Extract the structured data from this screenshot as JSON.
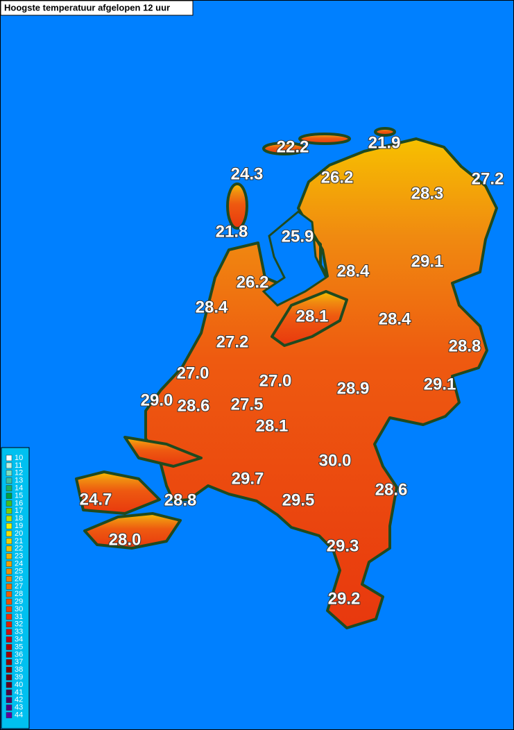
{
  "title": "Hoogste temperatuur afgelopen 12 uur",
  "stations": [
    {
      "label": "22.2"
    },
    {
      "label": "21.9"
    },
    {
      "label": "24.3"
    },
    {
      "label": "26.2"
    },
    {
      "label": "28.3"
    },
    {
      "label": "27.2"
    },
    {
      "label": "21.8"
    },
    {
      "label": "25.9"
    },
    {
      "label": "29.1"
    },
    {
      "label": "28.4"
    },
    {
      "label": "26.2"
    },
    {
      "label": "28.4"
    },
    {
      "label": "28.1"
    },
    {
      "label": "28.4"
    },
    {
      "label": "28.8"
    },
    {
      "label": "27.2"
    },
    {
      "label": "27.0"
    },
    {
      "label": "27.0"
    },
    {
      "label": "28.9"
    },
    {
      "label": "29.1"
    },
    {
      "label": "29.0"
    },
    {
      "label": "28.6"
    },
    {
      "label": "27.5"
    },
    {
      "label": "28.1"
    },
    {
      "label": "30.0"
    },
    {
      "label": "29.7"
    },
    {
      "label": "28.6"
    },
    {
      "label": "24.7"
    },
    {
      "label": "28.8"
    },
    {
      "label": "29.5"
    },
    {
      "label": "28.0"
    },
    {
      "label": "29.3"
    },
    {
      "label": "29.2"
    }
  ],
  "legend": {
    "entries": [
      {
        "label": "10",
        "color": "#ffffff"
      },
      {
        "label": "11",
        "color": "#c0f0e0"
      },
      {
        "label": "12",
        "color": "#80e0c0"
      },
      {
        "label": "13",
        "color": "#40c0a0"
      },
      {
        "label": "14",
        "color": "#20b060"
      },
      {
        "label": "15",
        "color": "#00a040"
      },
      {
        "label": "16",
        "color": "#40c020"
      },
      {
        "label": "17",
        "color": "#80d000"
      },
      {
        "label": "18",
        "color": "#c0e000"
      },
      {
        "label": "19",
        "color": "#f0f000"
      },
      {
        "label": "20",
        "color": "#f0e000"
      },
      {
        "label": "21",
        "color": "#f0d000"
      },
      {
        "label": "22",
        "color": "#f0c000"
      },
      {
        "label": "23",
        "color": "#f0b000"
      },
      {
        "label": "24",
        "color": "#f0a000"
      },
      {
        "label": "25",
        "color": "#f09000"
      },
      {
        "label": "26",
        "color": "#f08000"
      },
      {
        "label": "27",
        "color": "#f07000"
      },
      {
        "label": "28",
        "color": "#f06000"
      },
      {
        "label": "29",
        "color": "#f05000"
      },
      {
        "label": "30",
        "color": "#f04000"
      },
      {
        "label": "31",
        "color": "#f03000"
      },
      {
        "label": "32",
        "color": "#e02000"
      },
      {
        "label": "33",
        "color": "#d01010"
      },
      {
        "label": "34",
        "color": "#c00010"
      },
      {
        "label": "35",
        "color": "#b00000"
      },
      {
        "label": "36",
        "color": "#a00000"
      },
      {
        "label": "37",
        "color": "#900000"
      },
      {
        "label": "38",
        "color": "#800000"
      },
      {
        "label": "39",
        "color": "#700010"
      },
      {
        "label": "40",
        "color": "#600020"
      },
      {
        "label": "41",
        "color": "#500040"
      },
      {
        "label": "42",
        "color": "#500060"
      },
      {
        "label": "43",
        "color": "#500080"
      },
      {
        "label": "44",
        "color": "#6000a0"
      }
    ]
  }
}
